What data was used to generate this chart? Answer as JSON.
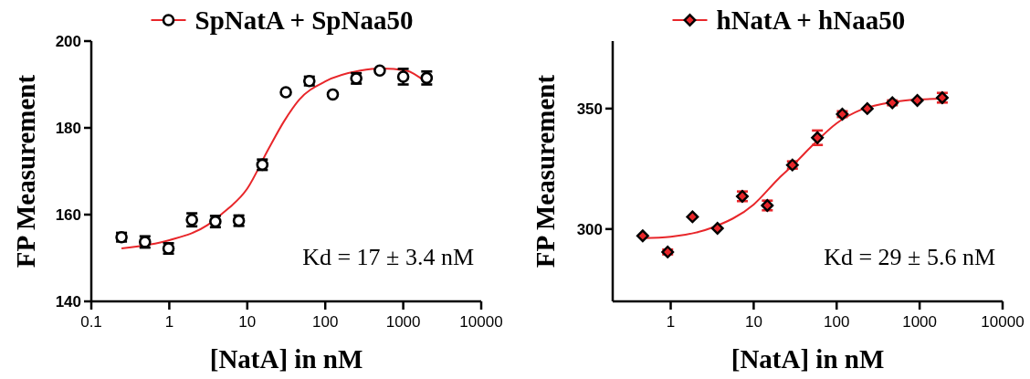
{
  "chart_data": [
    {
      "type": "scatter",
      "title": null,
      "xlabel": "[NatA] in nM",
      "ylabel": "FP Measurement",
      "log": "x",
      "xlim": [
        0.1,
        10000
      ],
      "xticks": [
        0.1,
        1,
        10,
        100,
        1000,
        10000
      ],
      "ylim": [
        140,
        200
      ],
      "yticks": [
        140,
        160,
        180,
        200
      ],
      "legend": "top",
      "annotations": [
        "Kd = 17 ± 3.4 nM"
      ],
      "series": [
        {
          "name": "SpNatA + SpNaa50",
          "marker": "circle",
          "color": "#000000",
          "x": [
            0.244,
            0.488,
            0.977,
            1.95,
            3.9,
            7.8,
            15.6,
            31.25,
            62.5,
            125,
            250,
            500,
            1000,
            2000
          ],
          "values": [
            154.8,
            153.7,
            152.2,
            158.8,
            158.4,
            158.6,
            171.5,
            188.2,
            190.8,
            187.7,
            191.4,
            193.2,
            191.8,
            191.5
          ],
          "errors": [
            1,
            1.3,
            1.2,
            1.5,
            1.3,
            1.2,
            1.2,
            null,
            1,
            null,
            1.2,
            null,
            1.8,
            1.5
          ]
        },
        {
          "type": "line",
          "marker": "none",
          "color": "#e8262a",
          "x": [
            0.244,
            1,
            3.1,
            4.9,
            10,
            18.8,
            29.6,
            46.4,
            100,
            282,
            530,
            1085,
            2000
          ],
          "values": [
            152.2,
            154.1,
            157.6,
            160.4,
            166.0,
            175.2,
            181.5,
            186.5,
            190.7,
            193.2,
            193.7,
            193.2,
            190.4
          ]
        }
      ]
    },
    {
      "type": "scatter",
      "title": null,
      "xlabel": "[NatA] in nM",
      "ylabel": "FP Measurement",
      "log": "x",
      "xlim": [
        0.2,
        10000
      ],
      "xticks": [
        1,
        10,
        100,
        1000,
        10000
      ],
      "ylim": [
        270,
        378
      ],
      "yticks": [
        300,
        350
      ],
      "legend": "top",
      "annotations": [
        "Kd = 29 ± 5.6 nM"
      ],
      "series": [
        {
          "name": "hNatA + hNaa50",
          "marker": "diamond",
          "color": "#e8262a",
          "x": [
            0.46,
            0.92,
            1.83,
            3.66,
            7.3,
            14.6,
            29.3,
            58.6,
            117,
            234,
            469,
            938,
            1875
          ],
          "values": [
            297.2,
            290.5,
            305.1,
            300.3,
            313.6,
            309.8,
            326.6,
            337.9,
            347.7,
            350,
            352.4,
            353.4,
            354.5
          ],
          "errors": [
            null,
            1,
            null,
            null,
            2,
            2,
            1.5,
            3,
            1.2,
            null,
            1,
            null,
            2
          ]
        },
        {
          "type": "line",
          "marker": "none",
          "color": "#e8262a",
          "x": [
            0.46,
            1,
            3.16,
            10,
            20,
            31.6,
            50,
            100,
            200,
            500,
            1000,
            1875
          ],
          "values": [
            296.2,
            296.8,
            300.6,
            310.2,
            321,
            327.4,
            334.4,
            343.9,
            349.6,
            352.8,
            353.8,
            354.1
          ]
        }
      ]
    }
  ]
}
